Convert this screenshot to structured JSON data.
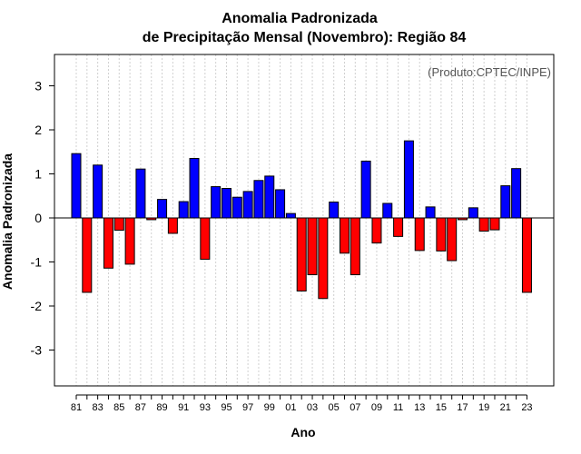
{
  "chart_data": {
    "type": "bar",
    "title": "Anomalia Padronizada",
    "subtitle": "de Precipitação Mensal (Novembro): Região 84",
    "credit": "(Produto:CPTEC/INPE)",
    "xlabel": "Ano",
    "ylabel": "Anomalia Padronizada",
    "ylim": [
      -3.8,
      3.8
    ],
    "yticks": [
      -3,
      -2,
      -1,
      0,
      1,
      2,
      3
    ],
    "grid": "vertical-dotted",
    "positive_color": "#0000ff",
    "negative_color": "#ff0000",
    "categories": [
      "81",
      "82",
      "83",
      "84",
      "85",
      "86",
      "87",
      "88",
      "89",
      "90",
      "91",
      "92",
      "93",
      "94",
      "95",
      "96",
      "97",
      "98",
      "99",
      "00",
      "01",
      "02",
      "03",
      "04",
      "05",
      "06",
      "07",
      "08",
      "09",
      "10",
      "11",
      "12",
      "13",
      "14",
      "15",
      "16",
      "17",
      "18",
      "19",
      "20",
      "21",
      "22",
      "23"
    ],
    "tick_labels": [
      "81",
      "83",
      "85",
      "87",
      "89",
      "91",
      "93",
      "95",
      "97",
      "99",
      "01",
      "03",
      "05",
      "07",
      "09",
      "11",
      "13",
      "15",
      "17",
      "19",
      "21",
      "23"
    ],
    "values": [
      1.46,
      -1.69,
      1.2,
      -1.14,
      -0.28,
      -1.05,
      1.11,
      -0.04,
      0.42,
      -0.35,
      0.37,
      1.35,
      -0.94,
      0.71,
      0.67,
      0.47,
      0.6,
      0.85,
      0.95,
      0.64,
      0.1,
      -1.66,
      -1.29,
      -1.83,
      0.36,
      -0.8,
      -1.29,
      1.29,
      -0.57,
      0.33,
      -0.42,
      1.75,
      -0.74,
      0.25,
      -0.75,
      -0.97,
      -0.04,
      0.23,
      -0.3,
      -0.27,
      0.73,
      1.12,
      -1.69
    ]
  }
}
